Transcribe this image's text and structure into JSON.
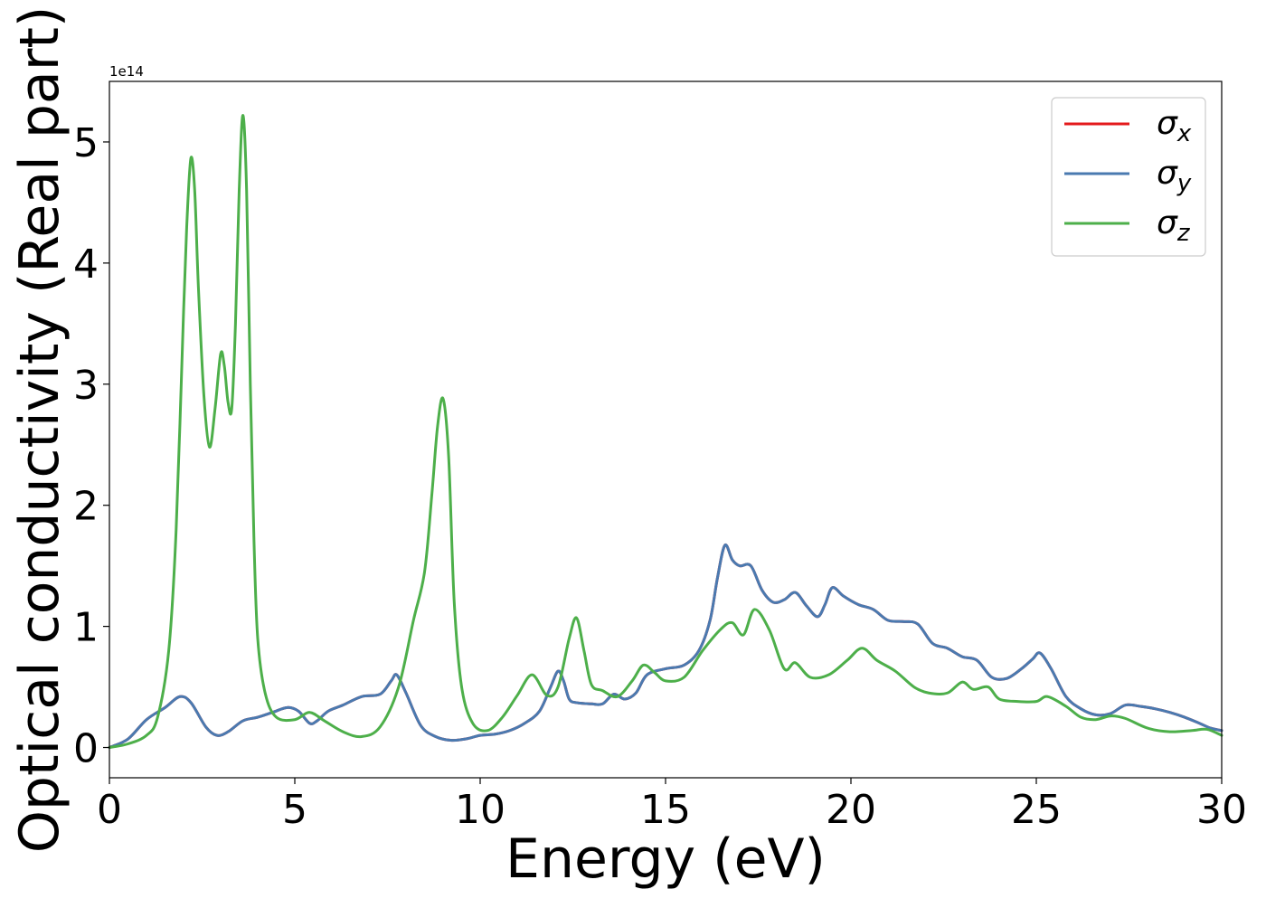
{
  "chart_data": {
    "type": "line",
    "xlabel": "Energy (eV)",
    "ylabel": "Optical conductivity (Real part)",
    "y_offset_text": "1e14",
    "xlim": [
      0,
      30
    ],
    "ylim": [
      -0.25,
      5.5
    ],
    "y_scale_factor": 100000000000000.0,
    "xticks": [
      0,
      5,
      10,
      15,
      20,
      25,
      30
    ],
    "xtick_labels": [
      "0",
      "5",
      "10",
      "15",
      "20",
      "25",
      "30"
    ],
    "yticks": [
      0,
      1,
      2,
      3,
      4,
      5
    ],
    "ytick_labels": [
      "0",
      "1",
      "2",
      "3",
      "4",
      "5"
    ],
    "grid": false,
    "legend_position": "top-right",
    "series": [
      {
        "name": "σx",
        "symbol": "σ",
        "subscript": "x",
        "color": "#e41a1c",
        "x": [
          0,
          0.5,
          1.0,
          1.5,
          1.9,
          2.2,
          2.6,
          2.9,
          3.2,
          3.6,
          4.0,
          4.4,
          4.8,
          5.1,
          5.4,
          5.6,
          5.9,
          6.3,
          6.8,
          7.3,
          7.6,
          7.75,
          8.0,
          8.4,
          8.8,
          9.2,
          9.6,
          10.0,
          10.4,
          10.8,
          11.2,
          11.6,
          11.9,
          12.1,
          12.25,
          12.4,
          12.6,
          13.0,
          13.3,
          13.6,
          13.9,
          14.2,
          14.5,
          15.0,
          15.5,
          15.9,
          16.2,
          16.4,
          16.6,
          16.8,
          17.0,
          17.3,
          17.6,
          17.9,
          18.2,
          18.5,
          18.8,
          19.1,
          19.3,
          19.5,
          19.8,
          20.2,
          20.6,
          21.0,
          21.4,
          21.8,
          22.2,
          22.6,
          23.0,
          23.4,
          23.8,
          24.2,
          24.6,
          24.9,
          25.1,
          25.4,
          25.8,
          26.2,
          26.6,
          27.0,
          27.4,
          27.8,
          28.2,
          28.6,
          29.0,
          29.4,
          29.7,
          30.0
        ],
        "y": [
          0.0,
          0.07,
          0.23,
          0.33,
          0.42,
          0.37,
          0.17,
          0.1,
          0.13,
          0.22,
          0.25,
          0.29,
          0.33,
          0.3,
          0.2,
          0.22,
          0.3,
          0.35,
          0.42,
          0.44,
          0.55,
          0.6,
          0.45,
          0.18,
          0.09,
          0.06,
          0.07,
          0.1,
          0.11,
          0.14,
          0.2,
          0.3,
          0.5,
          0.63,
          0.55,
          0.4,
          0.37,
          0.36,
          0.36,
          0.44,
          0.4,
          0.45,
          0.6,
          0.65,
          0.68,
          0.8,
          1.05,
          1.4,
          1.67,
          1.55,
          1.5,
          1.5,
          1.3,
          1.2,
          1.22,
          1.28,
          1.17,
          1.08,
          1.18,
          1.32,
          1.25,
          1.18,
          1.14,
          1.05,
          1.04,
          1.02,
          0.86,
          0.82,
          0.75,
          0.72,
          0.58,
          0.57,
          0.65,
          0.73,
          0.78,
          0.65,
          0.42,
          0.32,
          0.27,
          0.28,
          0.35,
          0.34,
          0.32,
          0.29,
          0.25,
          0.2,
          0.16,
          0.14
        ]
      },
      {
        "name": "σy",
        "symbol": "σ",
        "subscript": "y",
        "color": "#4a7ab0",
        "x": [
          0,
          0.5,
          1.0,
          1.5,
          1.9,
          2.2,
          2.6,
          2.9,
          3.2,
          3.6,
          4.0,
          4.4,
          4.8,
          5.1,
          5.4,
          5.6,
          5.9,
          6.3,
          6.8,
          7.3,
          7.6,
          7.75,
          8.0,
          8.4,
          8.8,
          9.2,
          9.6,
          10.0,
          10.4,
          10.8,
          11.2,
          11.6,
          11.9,
          12.1,
          12.25,
          12.4,
          12.6,
          13.0,
          13.3,
          13.6,
          13.9,
          14.2,
          14.5,
          15.0,
          15.5,
          15.9,
          16.2,
          16.4,
          16.6,
          16.8,
          17.0,
          17.3,
          17.6,
          17.9,
          18.2,
          18.5,
          18.8,
          19.1,
          19.3,
          19.5,
          19.8,
          20.2,
          20.6,
          21.0,
          21.4,
          21.8,
          22.2,
          22.6,
          23.0,
          23.4,
          23.8,
          24.2,
          24.6,
          24.9,
          25.1,
          25.4,
          25.8,
          26.2,
          26.6,
          27.0,
          27.4,
          27.8,
          28.2,
          28.6,
          29.0,
          29.4,
          29.7,
          30.0
        ],
        "y": [
          0.0,
          0.07,
          0.23,
          0.33,
          0.42,
          0.37,
          0.17,
          0.1,
          0.13,
          0.22,
          0.25,
          0.29,
          0.33,
          0.3,
          0.2,
          0.22,
          0.3,
          0.35,
          0.42,
          0.44,
          0.55,
          0.6,
          0.45,
          0.18,
          0.09,
          0.06,
          0.07,
          0.1,
          0.11,
          0.14,
          0.2,
          0.3,
          0.5,
          0.63,
          0.55,
          0.4,
          0.37,
          0.36,
          0.36,
          0.44,
          0.4,
          0.45,
          0.6,
          0.65,
          0.68,
          0.8,
          1.05,
          1.4,
          1.67,
          1.55,
          1.5,
          1.5,
          1.3,
          1.2,
          1.22,
          1.28,
          1.17,
          1.08,
          1.18,
          1.32,
          1.25,
          1.18,
          1.14,
          1.05,
          1.04,
          1.02,
          0.86,
          0.82,
          0.75,
          0.72,
          0.58,
          0.57,
          0.65,
          0.73,
          0.78,
          0.65,
          0.42,
          0.32,
          0.27,
          0.28,
          0.35,
          0.34,
          0.32,
          0.29,
          0.25,
          0.2,
          0.16,
          0.14
        ]
      },
      {
        "name": "σz",
        "symbol": "σ",
        "subscript": "z",
        "color": "#4daf4a",
        "x": [
          0,
          0.5,
          1.0,
          1.3,
          1.6,
          1.8,
          2.0,
          2.1,
          2.2,
          2.3,
          2.4,
          2.55,
          2.7,
          2.85,
          3.0,
          3.1,
          3.2,
          3.3,
          3.4,
          3.5,
          3.6,
          3.7,
          3.8,
          3.9,
          4.0,
          4.2,
          4.5,
          5.0,
          5.4,
          5.8,
          6.3,
          6.8,
          7.3,
          7.8,
          8.2,
          8.5,
          8.7,
          8.85,
          9.0,
          9.15,
          9.3,
          9.5,
          9.8,
          10.2,
          10.6,
          11.0,
          11.4,
          11.8,
          12.1,
          12.4,
          12.6,
          12.8,
          13.0,
          13.3,
          13.7,
          14.1,
          14.4,
          14.7,
          15.0,
          15.5,
          16.0,
          16.5,
          16.8,
          17.1,
          17.4,
          17.8,
          18.2,
          18.5,
          18.9,
          19.4,
          19.9,
          20.3,
          20.7,
          21.2,
          21.7,
          22.1,
          22.6,
          23.0,
          23.3,
          23.7,
          24.0,
          24.5,
          25.0,
          25.3,
          25.8,
          26.2,
          26.6,
          27.0,
          27.4,
          28.0,
          28.6,
          29.2,
          29.6,
          30.0
        ],
        "y": [
          0.0,
          0.03,
          0.1,
          0.25,
          0.8,
          1.8,
          3.6,
          4.4,
          4.87,
          4.6,
          3.8,
          2.9,
          2.48,
          2.8,
          3.25,
          3.15,
          2.85,
          2.8,
          3.5,
          4.6,
          5.22,
          4.6,
          3.0,
          1.7,
          0.9,
          0.45,
          0.25,
          0.23,
          0.29,
          0.22,
          0.13,
          0.09,
          0.17,
          0.5,
          1.05,
          1.45,
          2.1,
          2.65,
          2.88,
          2.4,
          1.2,
          0.5,
          0.2,
          0.14,
          0.25,
          0.43,
          0.6,
          0.43,
          0.5,
          0.9,
          1.07,
          0.8,
          0.52,
          0.47,
          0.42,
          0.55,
          0.68,
          0.62,
          0.55,
          0.58,
          0.8,
          0.98,
          1.03,
          0.93,
          1.14,
          0.97,
          0.65,
          0.7,
          0.58,
          0.6,
          0.72,
          0.82,
          0.72,
          0.63,
          0.5,
          0.45,
          0.45,
          0.54,
          0.48,
          0.5,
          0.4,
          0.38,
          0.38,
          0.42,
          0.34,
          0.25,
          0.23,
          0.26,
          0.24,
          0.16,
          0.13,
          0.14,
          0.15,
          0.1
        ]
      }
    ]
  }
}
